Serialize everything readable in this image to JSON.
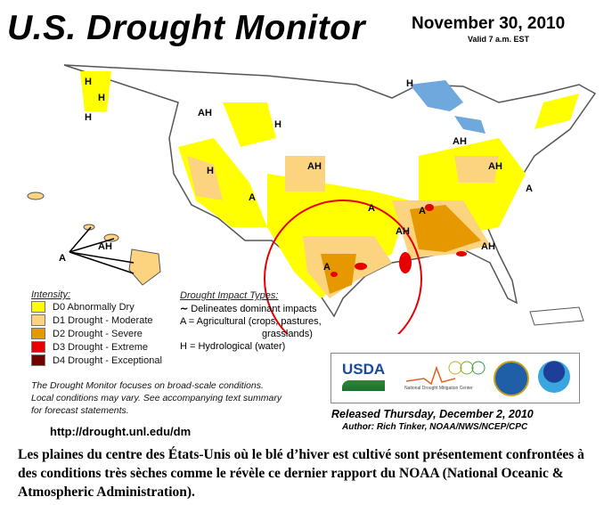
{
  "header": {
    "title": "U.S. Drought Monitor",
    "date": "November 30, 2010",
    "valid": "Valid 7 a.m. EST"
  },
  "map": {
    "labels": [
      "H",
      "H",
      "H",
      "AH",
      "H",
      "H",
      "H",
      "AH",
      "A",
      "AH",
      "A",
      "A",
      "AH",
      "AH",
      "A",
      "AH",
      "A",
      "AH",
      "A"
    ],
    "colors": {
      "d0": "#ffff00",
      "d1": "#fcd37f",
      "d2": "#ffaa00",
      "d3": "#e60000",
      "d4": "#730000",
      "highlight_circle": "#e60000",
      "water": "#6fa8dc"
    }
  },
  "legend": {
    "intensity_title": "Intensity:",
    "items": [
      {
        "label": "D0 Abnormally Dry",
        "color": "#ffff00"
      },
      {
        "label": "D1 Drought - Moderate",
        "color": "#fcd37f"
      },
      {
        "label": "D2 Drought - Severe",
        "color": "#e69800"
      },
      {
        "label": "D3 Drought - Extreme",
        "color": "#e60000"
      },
      {
        "label": "D4 Drought - Exceptional",
        "color": "#730000"
      }
    ],
    "impact_title": "Drought Impact Types:",
    "impacts": [
      "Delineates dominant impacts",
      "A = Agricultural (crops, pastures,",
      "grasslands)",
      "H = Hydrological (water)"
    ]
  },
  "note": [
    "The Drought Monitor focuses on broad-scale conditions.",
    "Local conditions may vary. See accompanying text summary",
    "for forecast statements."
  ],
  "url": "http://drought.unl.edu/dm",
  "logos": {
    "usda": "USDA",
    "ndmc": "National Drought Mitigation Center"
  },
  "released": "Released Thursday, December 2, 2010",
  "author": "Author: Rich Tinker, NOAA/NWS/NCEP/CPC",
  "caption": "Les plaines du centre des États-Unis où le blé d’hiver est cultivé sont présentement confrontées à des conditions très sèches comme le révèle ce dernier rapport du NOAA (National Oceanic & Atmospheric Administration)."
}
